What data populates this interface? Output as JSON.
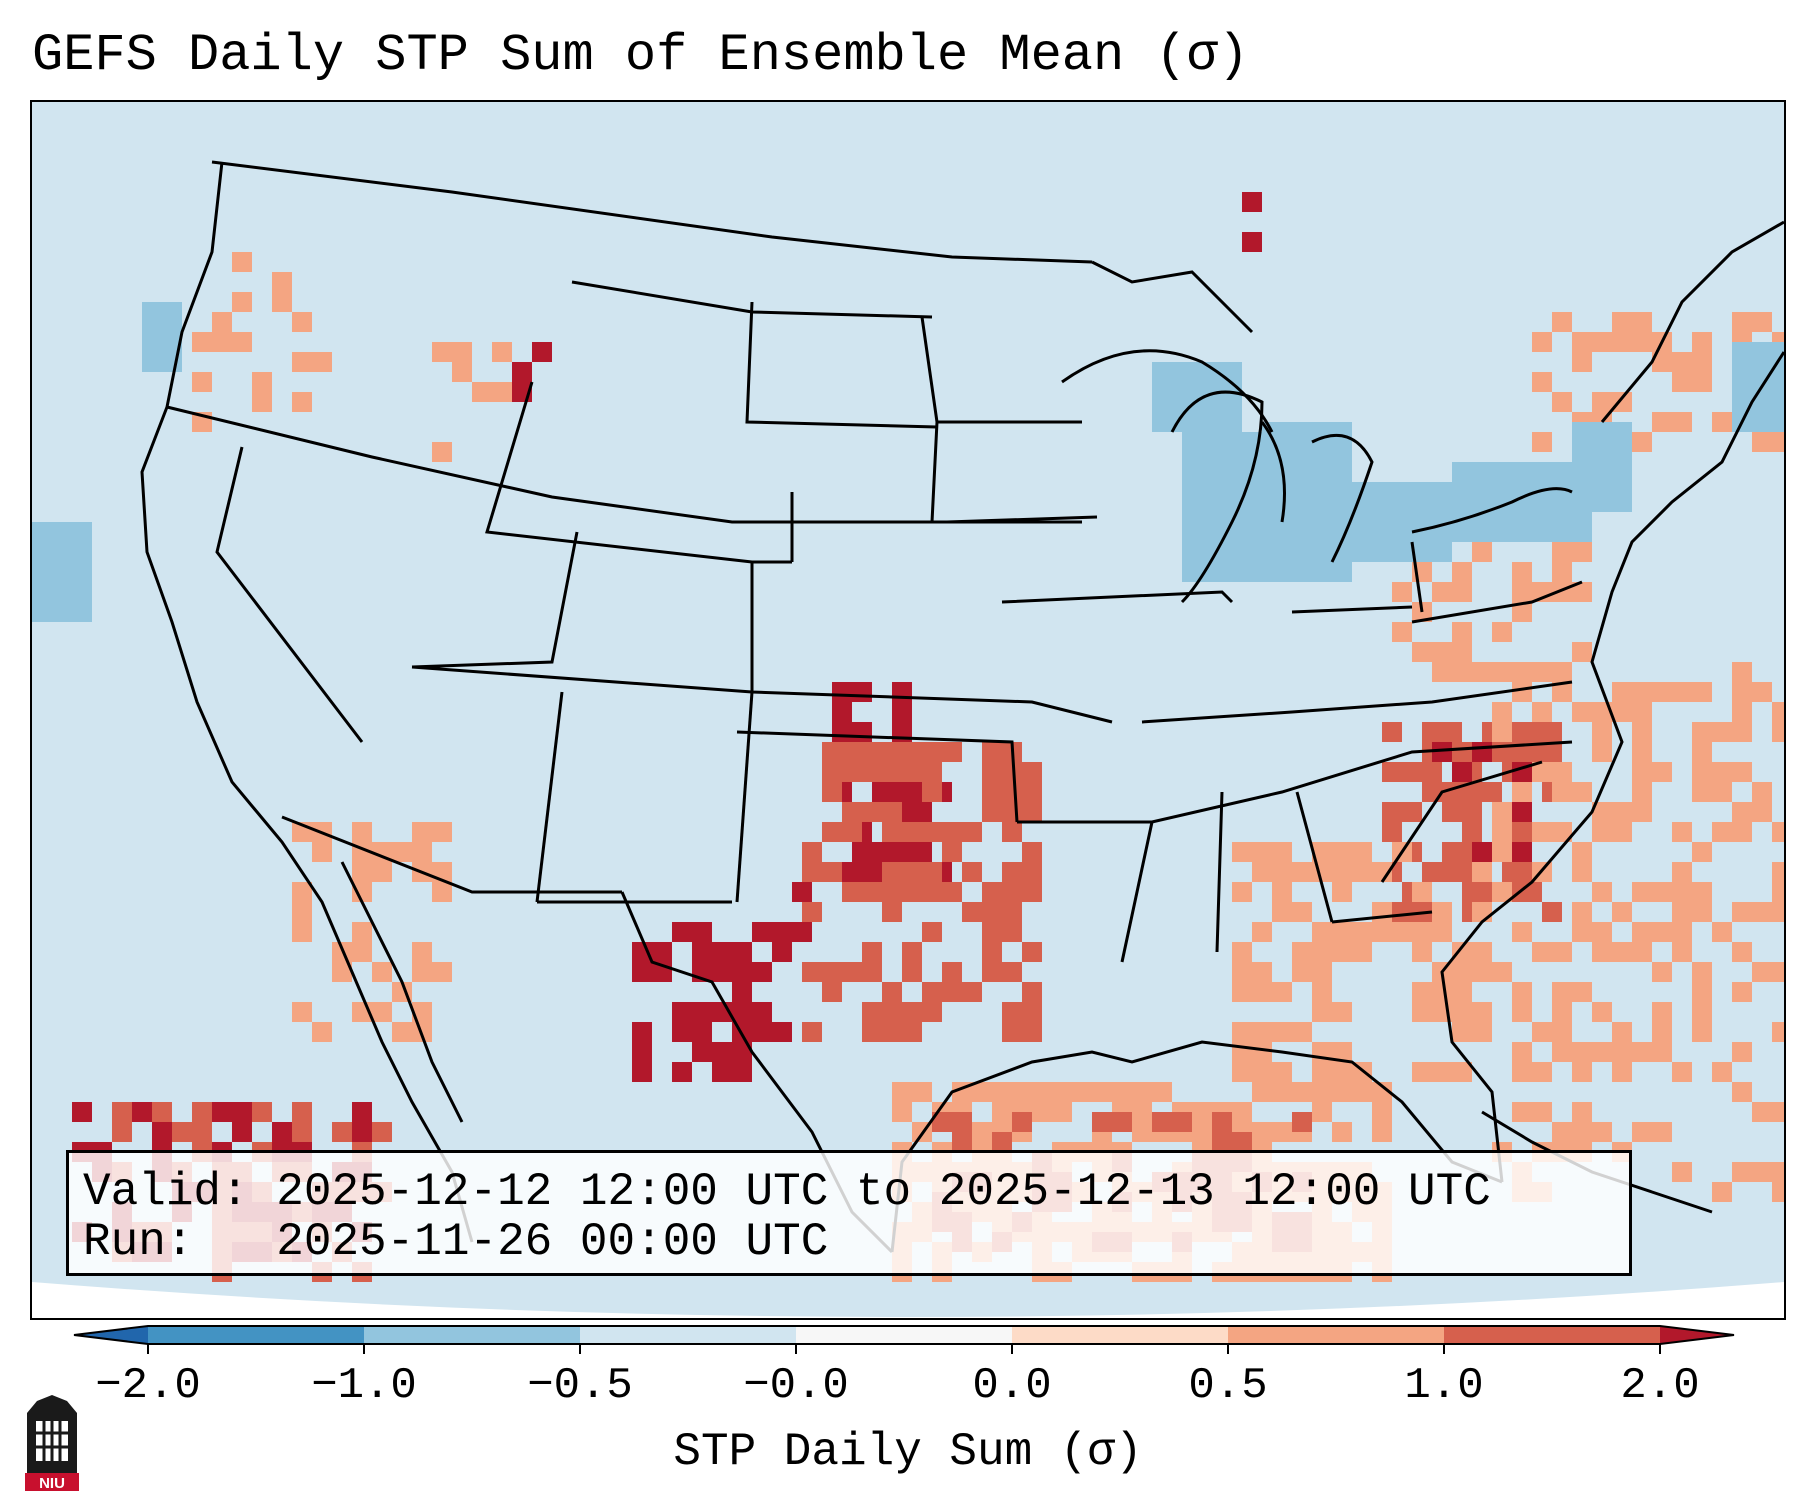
{
  "title": "GEFS Daily STP Sum of Ensemble Mean (σ)",
  "info": {
    "valid_line": "Valid: 2025-12-12 12:00 UTC to 2025-12-13 12:00 UTC",
    "run_line": "Run:   2025-11-26 00:00 UTC"
  },
  "colorbar": {
    "label": "STP Daily Sum (σ)",
    "ticks": [
      "−2.0",
      "−1.0",
      "−0.5",
      "−0.0",
      "0.0",
      "0.5",
      "1.0",
      "2.0"
    ],
    "bin_colors": [
      "#2166ac",
      "#4393c3",
      "#92c5de",
      "#d1e5f0",
      "#f7f7f7",
      "#fddbc7",
      "#f4a582",
      "#d6604d",
      "#b2182b"
    ],
    "extend": "both"
  },
  "map": {
    "background_color": "#d1e5f0",
    "regions": [
      {
        "name": "oklahoma-texas-high",
        "level": 2
      },
      {
        "name": "kansas-high",
        "level": 2
      },
      {
        "name": "new-mexico-high",
        "level": 2
      },
      {
        "name": "carolinas-high",
        "level": 1
      },
      {
        "name": "gulf-of-mexico-moderate",
        "level": 0.5
      },
      {
        "name": "pacific-baja-high",
        "level": 2
      },
      {
        "name": "atlantic-light",
        "level": 0.5
      },
      {
        "name": "great-lakes-negative",
        "level": -0.5
      }
    ]
  },
  "logo": {
    "text": "NIU"
  }
}
